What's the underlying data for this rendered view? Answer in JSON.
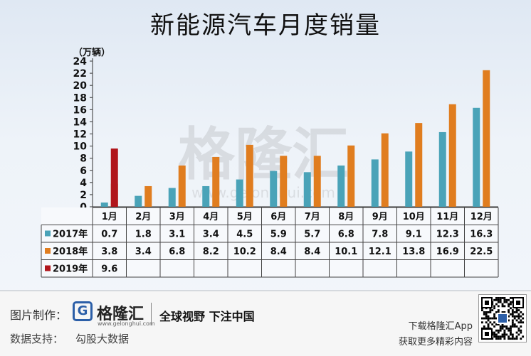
{
  "title": "新能源汽车月度销量",
  "chart_data": {
    "type": "bar",
    "unit_label": "（万辆）",
    "ylim": [
      0,
      24
    ],
    "yticks": [
      0,
      2,
      4,
      6,
      8,
      10,
      12,
      14,
      16,
      18,
      20,
      22,
      24
    ],
    "categories": [
      "1月",
      "2月",
      "3月",
      "4月",
      "5月",
      "6月",
      "7月",
      "8月",
      "9月",
      "10月",
      "11月",
      "12月"
    ],
    "series": [
      {
        "name": "2017年",
        "color": "#4aa3b8",
        "values": [
          0.7,
          1.8,
          3.1,
          3.4,
          4.5,
          5.9,
          5.7,
          6.8,
          7.8,
          9.1,
          12.3,
          16.3
        ]
      },
      {
        "name": "2018年",
        "color": "#e07d1f",
        "values": [
          3.8,
          3.4,
          6.8,
          8.2,
          10.2,
          8.4,
          8.4,
          10.1,
          12.1,
          13.8,
          16.9,
          22.5
        ]
      },
      {
        "name": "2019年",
        "color": "#b0161c",
        "values": [
          9.6,
          null,
          null,
          null,
          null,
          null,
          null,
          null,
          null,
          null,
          null,
          null
        ]
      }
    ],
    "table_values": [
      [
        "0.7",
        "1.8",
        "3.1",
        "3.4",
        "4.5",
        "5.9",
        "5.7",
        "6.8",
        "7.8",
        "9.1",
        "12.3",
        "16.3"
      ],
      [
        "3.8",
        "3.4",
        "6.8",
        "8.2",
        "10.2",
        "8.4",
        "8.4",
        "10.1",
        "12.1",
        "13.8",
        "16.9",
        "22.5"
      ],
      [
        "9.6",
        "",
        "",
        "",
        "",
        "",
        "",
        "",
        "",
        "",
        "",
        ""
      ]
    ],
    "watermark": "格隆汇",
    "watermark_url": "www.gelonghui.com"
  },
  "footer": {
    "made_label": "图片制作：",
    "logo_mark": "G",
    "logo_name": "格隆汇",
    "logo_url": "www.gelonghui.com",
    "slogan": "全球视野 下注中国",
    "support_label": "数据支持：",
    "support_value": "勾股大数据",
    "download_line1": "下载格隆汇App",
    "download_line2": "获取更多精彩内容"
  }
}
